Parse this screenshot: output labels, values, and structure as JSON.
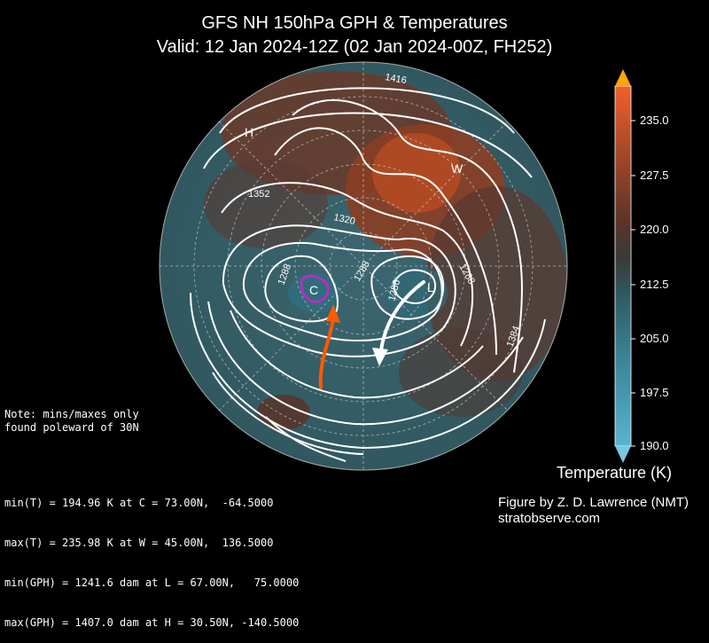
{
  "title": {
    "line1": "GFS NH 150hPa GPH & Temperatures",
    "line2": "Valid: 12 Jan 2024-12Z  (02 Jan 2024-00Z, FH252)"
  },
  "map": {
    "contour_labels": [
      "1416",
      "1352",
      "1320",
      "1288",
      "1288",
      "1288",
      "1256",
      "1384"
    ],
    "markers": {
      "high": "H",
      "warm": "W",
      "cold": "C",
      "low": "L"
    },
    "colors": {
      "cold_marker": "#d020d0",
      "orange_arrow": "#ff5a00",
      "white_arrow": "#ffffff"
    }
  },
  "colorbar": {
    "title": "Temperature (K)",
    "ticks": [
      "235.0",
      "227.5",
      "220.0",
      "212.5",
      "205.0",
      "197.5",
      "190.0"
    ],
    "range": [
      190.0,
      240.0
    ]
  },
  "note": "Note: mins/maxes only\nfound poleward of 30N",
  "stats": [
    "min(T) = 194.96 K at C = 73.00N,  -64.5000",
    "max(T) = 235.98 K at W = 45.00N,  136.5000",
    "min(GPH) = 1241.6 dam at L = 67.00N,   75.0000",
    "max(GPH) = 1407.0 dam at H = 30.50N, -140.5000"
  ],
  "credit": {
    "line1": "Figure by Z. D. Lawrence (NMT)",
    "line2": "stratobserve.com"
  }
}
